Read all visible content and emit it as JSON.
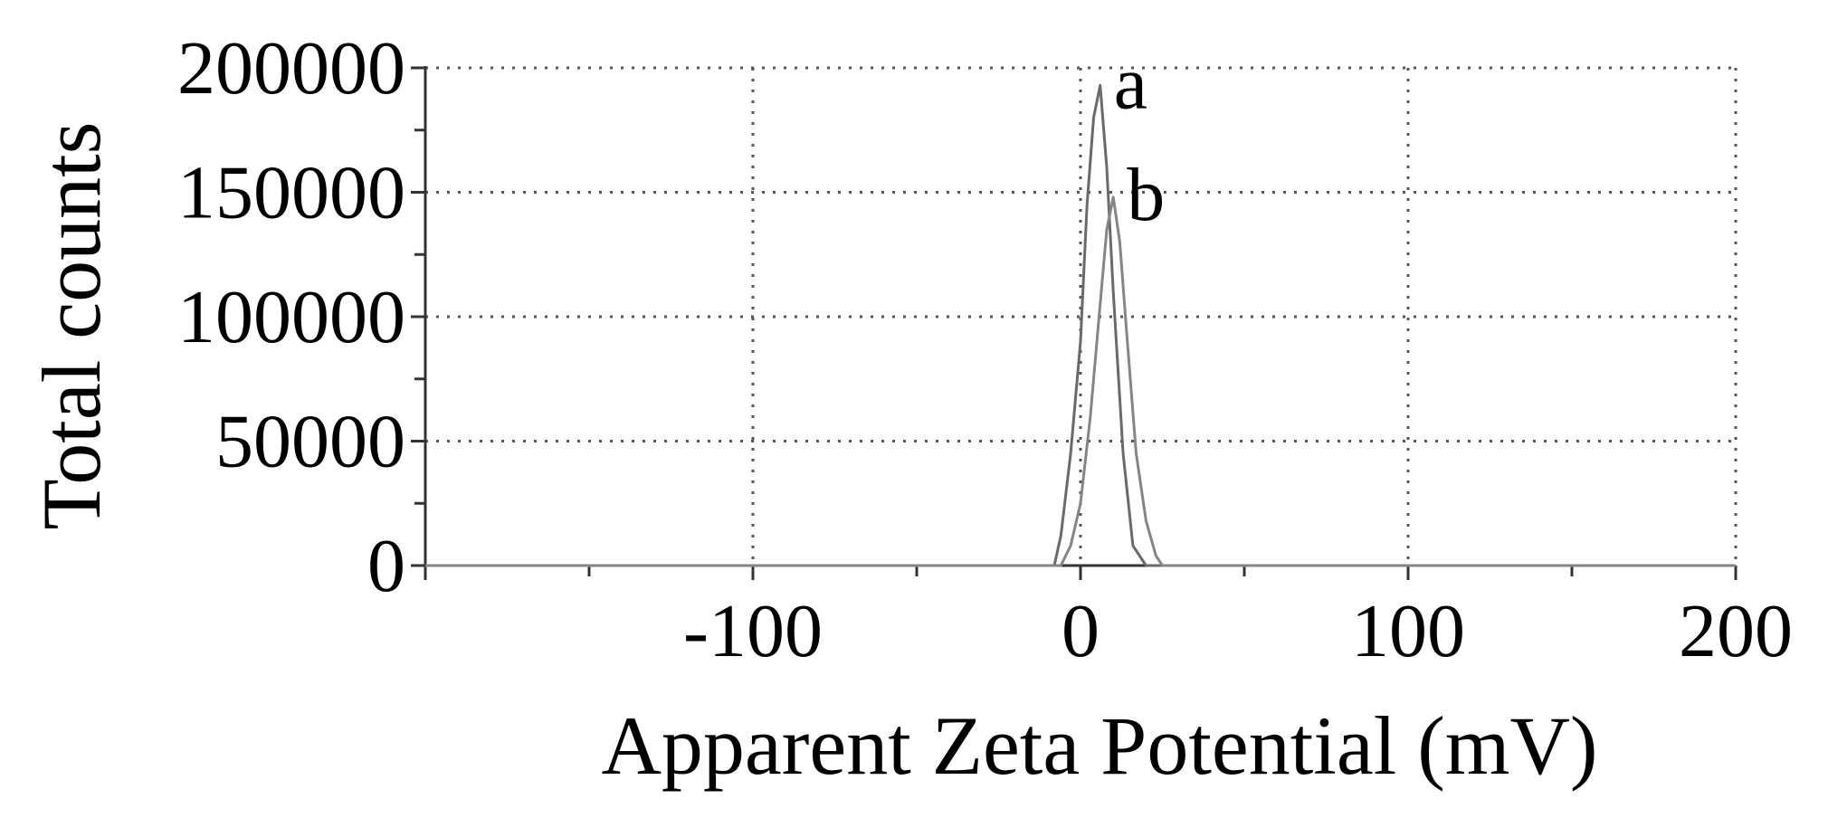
{
  "chart_data": {
    "type": "line",
    "xlabel": "Apparent Zeta Potential (mV)",
    "ylabel": "Total counts",
    "xlim": [
      -200,
      200
    ],
    "ylim": [
      0,
      200000
    ],
    "xticks": [
      -100,
      0,
      100,
      200
    ],
    "yticks": [
      0,
      50000,
      100000,
      150000,
      200000
    ],
    "grid": true,
    "series": [
      {
        "name": "a",
        "x": [
          -200,
          -8,
          -6,
          -3,
          0,
          2,
          4,
          6,
          8,
          10,
          13,
          16,
          20,
          200
        ],
        "y": [
          0,
          0,
          12000,
          45000,
          90000,
          145000,
          180000,
          193000,
          160000,
          110000,
          45000,
          8000,
          0,
          0
        ]
      },
      {
        "name": "b",
        "x": [
          -200,
          -6,
          -3,
          0,
          3,
          6,
          8,
          10,
          12,
          14,
          17,
          20,
          23,
          25,
          200
        ],
        "y": [
          0,
          0,
          8000,
          25000,
          60000,
          105000,
          135000,
          148000,
          130000,
          95000,
          45000,
          18000,
          4000,
          0,
          0
        ]
      }
    ]
  }
}
